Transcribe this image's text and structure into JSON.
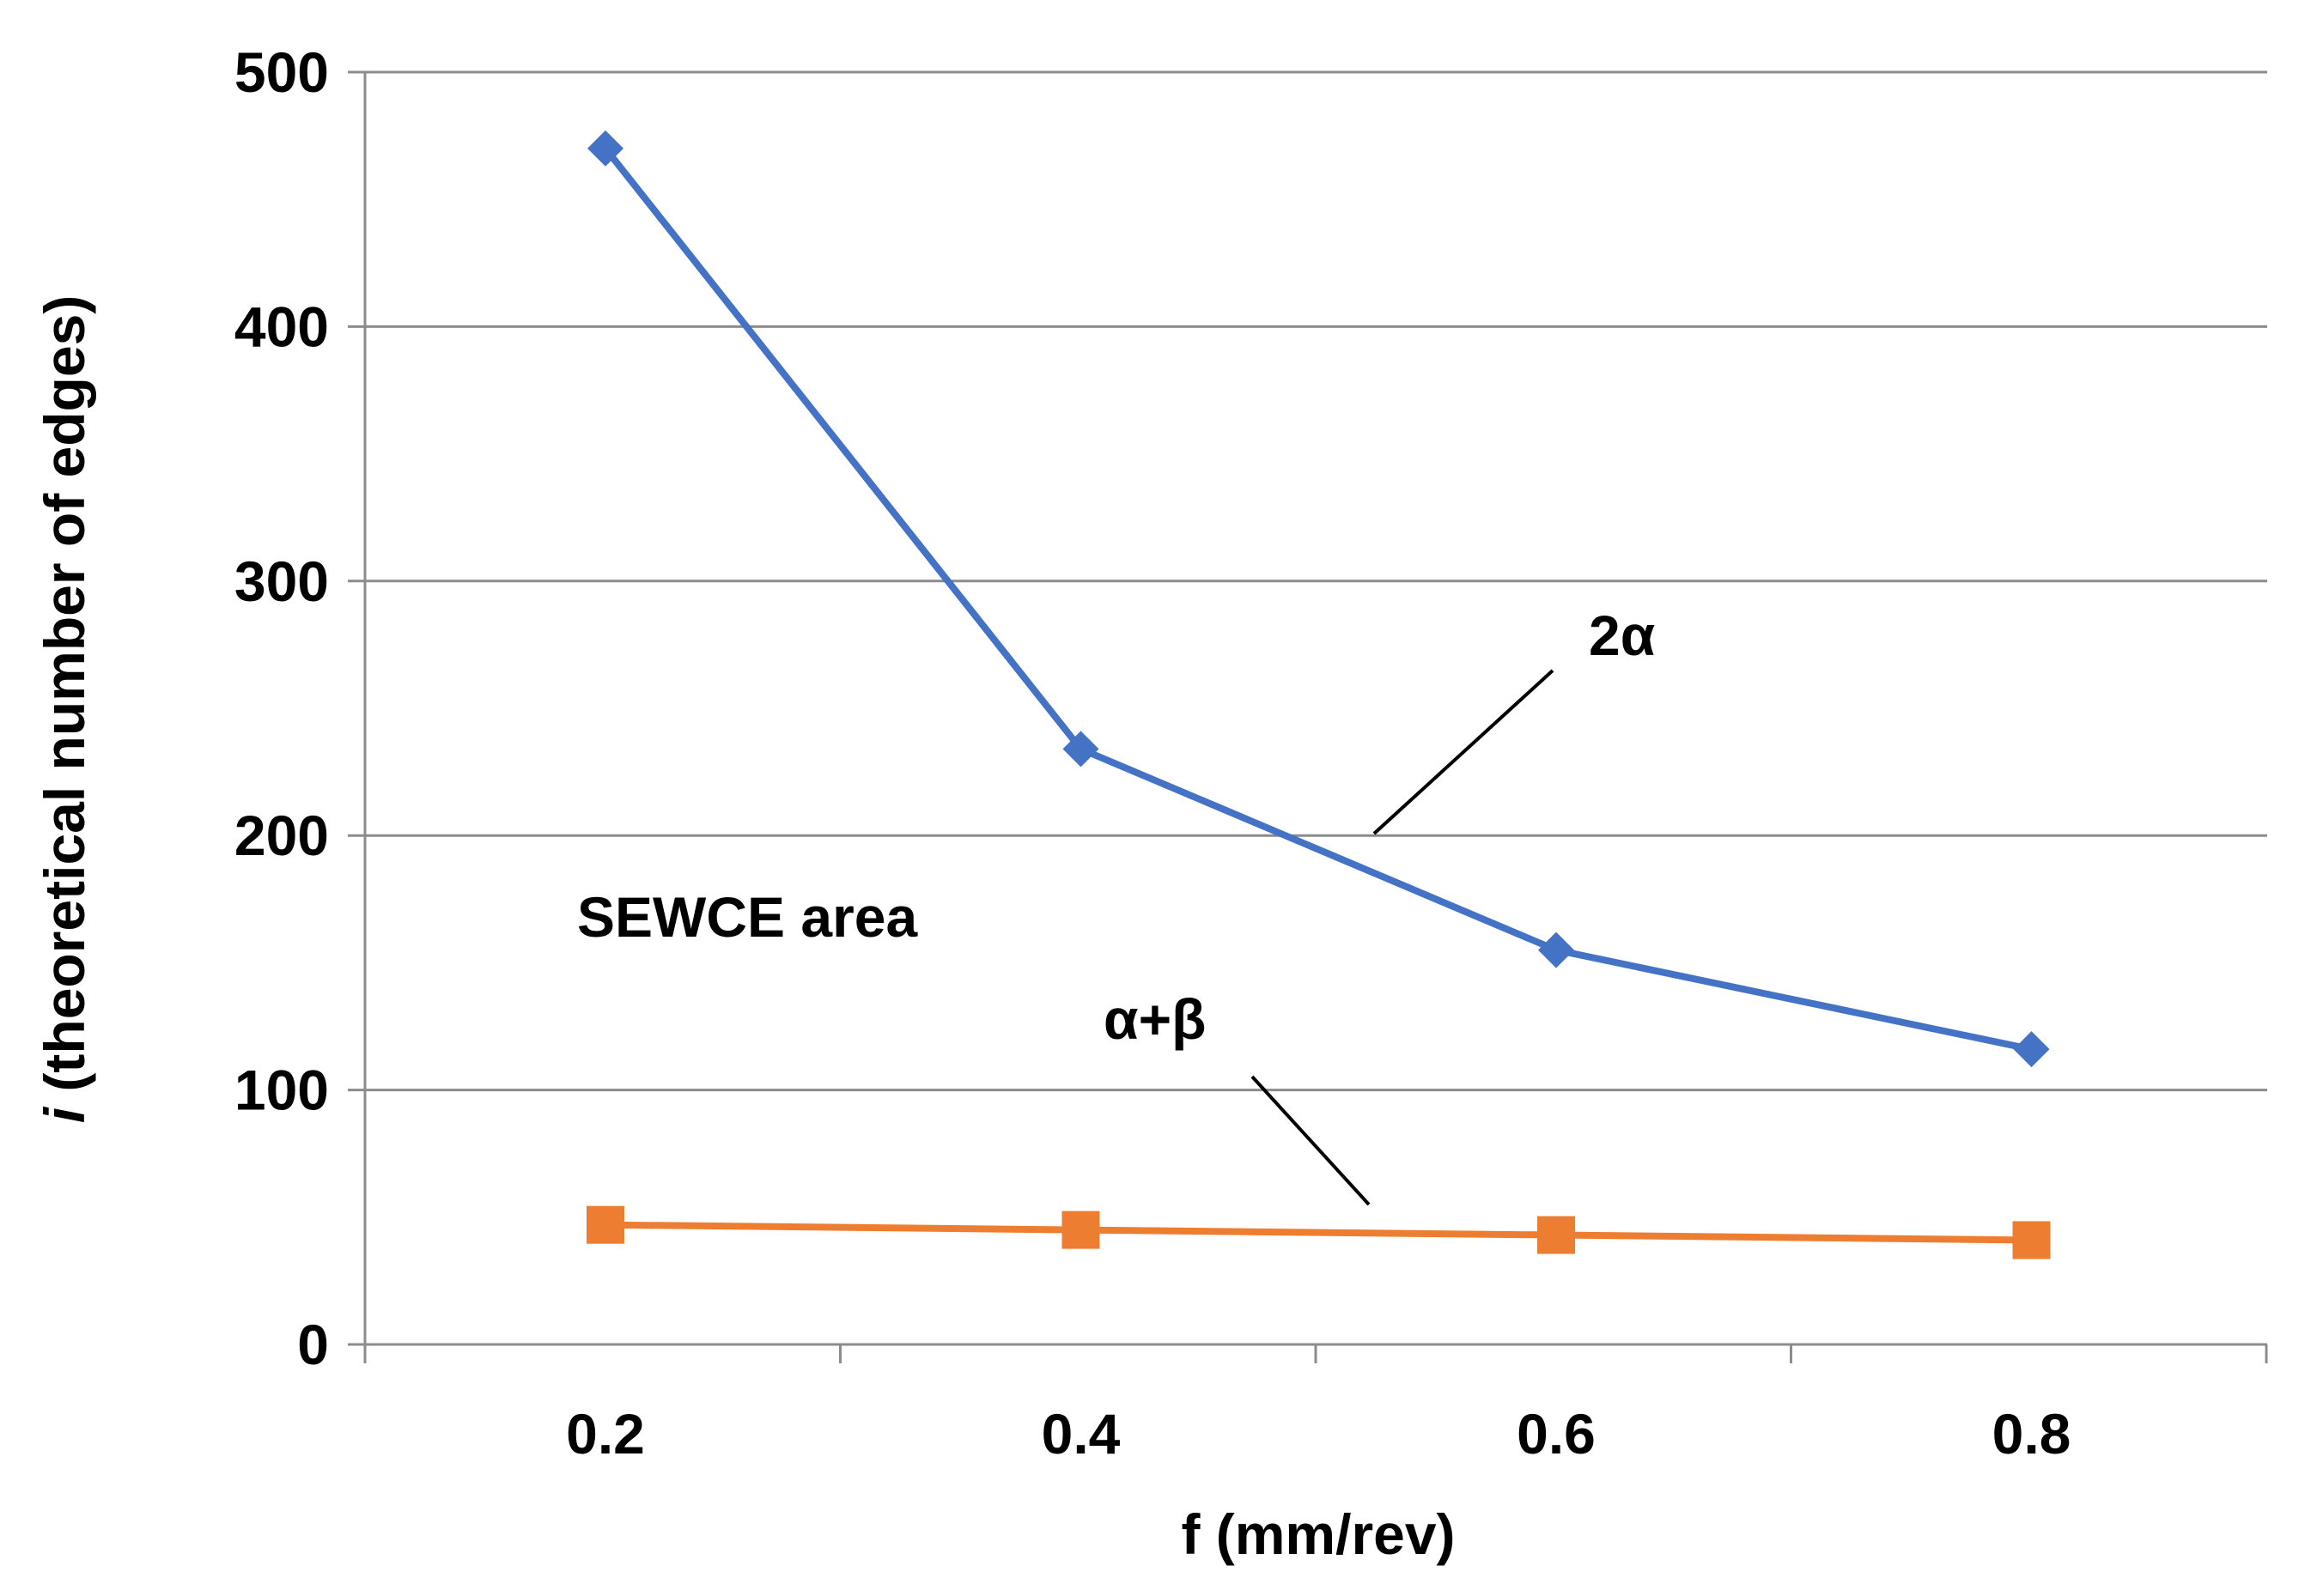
{
  "chart_data": {
    "type": "line",
    "title": "",
    "xlabel": "f (mm/rev)",
    "ylabel": {
      "italic_part": "i",
      "rest": " (theoretical number of edges)"
    },
    "x": [
      0.2,
      0.4,
      0.6,
      0.8
    ],
    "x_tick_labels": [
      "0.2",
      "0.4",
      "0.6",
      "0.8"
    ],
    "y_ticks": [
      0,
      100,
      200,
      300,
      400,
      500
    ],
    "y_tick_labels": [
      "0",
      "100",
      "200",
      "300",
      "400",
      "500"
    ],
    "ylim": [
      0,
      500
    ],
    "grid": true,
    "series": [
      {
        "name": "2α",
        "color": "#4472C4",
        "marker": "diamond",
        "values": [
          470,
          234,
          155,
          116
        ]
      },
      {
        "name": "α+β",
        "color": "#ED7D31",
        "marker": "square",
        "values": [
          47,
          45,
          43,
          41
        ]
      }
    ],
    "annotations": {
      "series1_label": "2α",
      "series2_label": "α+β",
      "area_label": "SEWCE area"
    }
  }
}
